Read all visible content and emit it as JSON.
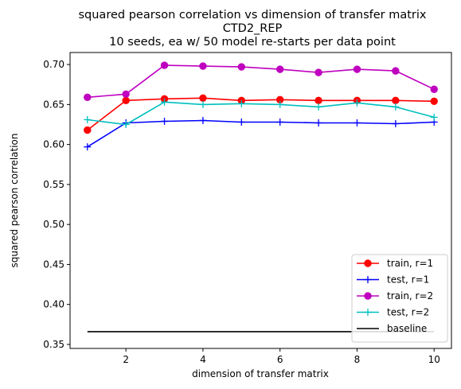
{
  "chart_data": {
    "type": "line",
    "title_lines": [
      "squared pearson correlation vs dimension of transfer matrix",
      "CTD2_REP",
      "10 seeds, ea w/ 50 model re-starts per data point"
    ],
    "xlabel": "dimension of transfer matrix",
    "ylabel": "squared pearson correlation",
    "xlim": [
      0.55,
      10.45
    ],
    "ylim": [
      0.345,
      0.715
    ],
    "x_ticks": [
      2,
      4,
      6,
      8,
      10
    ],
    "y_ticks": [
      0.35,
      0.4,
      0.45,
      0.5,
      0.55,
      0.6,
      0.65,
      0.7
    ],
    "y_tick_labels": [
      "0.35",
      "0.40",
      "0.45",
      "0.50",
      "0.55",
      "0.60",
      "0.65",
      "0.70"
    ],
    "grid": false,
    "legend_position": "lower-right",
    "x": [
      1,
      2,
      3,
      4,
      5,
      6,
      7,
      8,
      9,
      10
    ],
    "series": [
      {
        "name": "train, r=1",
        "color": "#ff0000",
        "marker": "circle",
        "values": [
          0.618,
          0.655,
          0.657,
          0.658,
          0.655,
          0.656,
          0.655,
          0.655,
          0.655,
          0.654
        ]
      },
      {
        "name": "test, r=1",
        "color": "#0000ff",
        "marker": "plus",
        "values": [
          0.597,
          0.627,
          0.629,
          0.63,
          0.628,
          0.628,
          0.627,
          0.627,
          0.626,
          0.628
        ]
      },
      {
        "name": "train, r=2",
        "color": "#bf00bf",
        "marker": "circle",
        "values": [
          0.659,
          0.663,
          0.699,
          0.698,
          0.697,
          0.694,
          0.69,
          0.694,
          0.692,
          0.669
        ]
      },
      {
        "name": "test, r=2",
        "color": "#00bfbf",
        "marker": "plus",
        "values": [
          0.631,
          0.625,
          0.653,
          0.65,
          0.651,
          0.65,
          0.647,
          0.652,
          0.647,
          0.634
        ]
      },
      {
        "name": "baseline",
        "color": "#000000",
        "marker": "none",
        "values": [
          0.366,
          0.366,
          0.366,
          0.366,
          0.366,
          0.366,
          0.366,
          0.366,
          0.366,
          0.366
        ]
      }
    ]
  }
}
